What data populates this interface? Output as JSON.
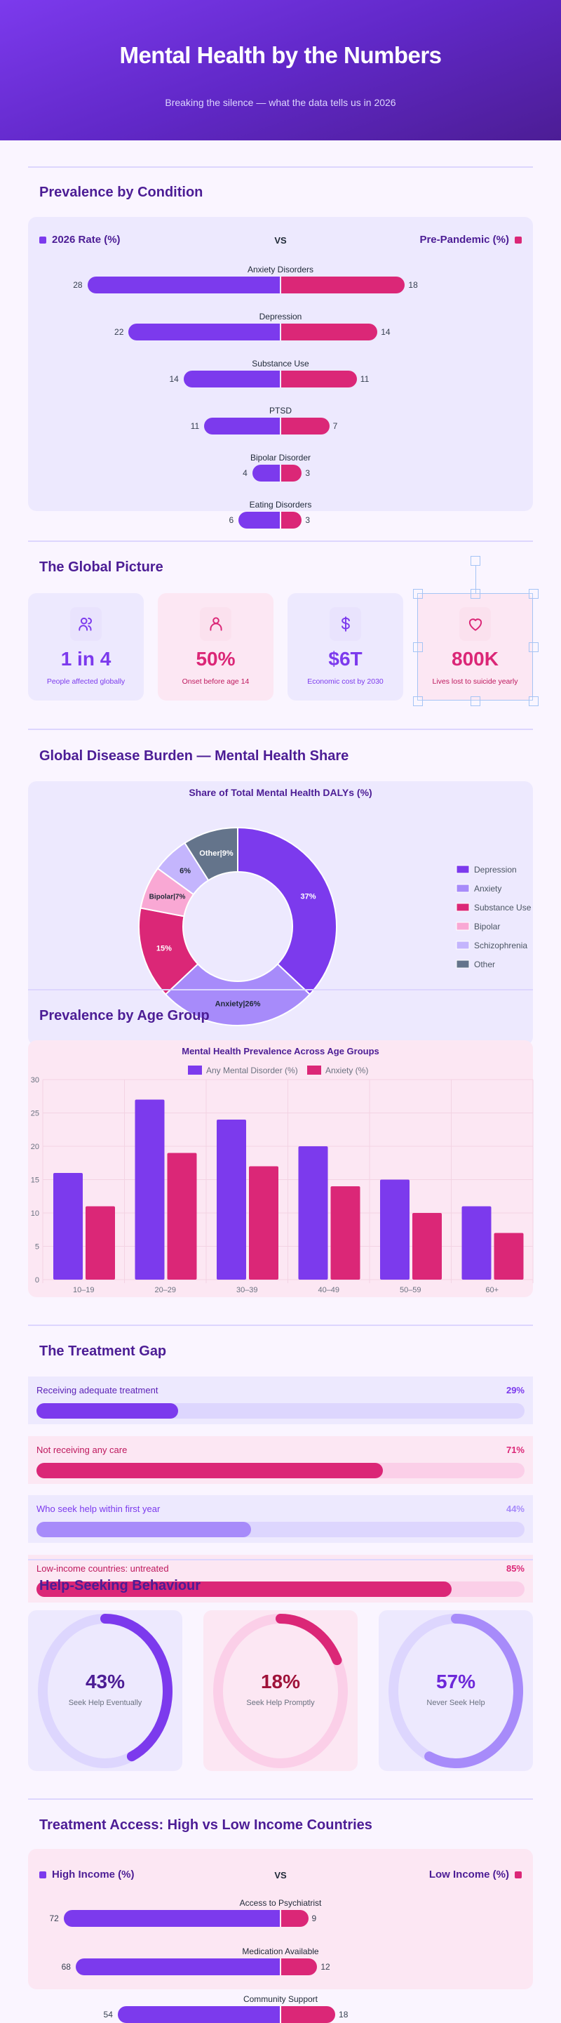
{
  "header": {
    "title": "Mental Health by the Numbers",
    "subtitle": "Breaking the silence — what the data tells us in 2026"
  },
  "colors": {
    "purple": "#7c3aed",
    "pink": "#db2777",
    "light_purple": "#a78bfa",
    "light_pink": "#f9a8d4",
    "lavender": "#c4b5fd",
    "slate": "#64748b",
    "title": "#4c1d95"
  },
  "prevalence": {
    "title": "Prevalence by Condition",
    "legend_left": "2026 Rate (%)",
    "vs": "VS",
    "legend_right": "Pre-Pandemic (%)",
    "rows": [
      {
        "label": "Anxiety Disorders",
        "left": 28,
        "right": 18
      },
      {
        "label": "Depression",
        "left": 22,
        "right": 14
      },
      {
        "label": "Substance Use",
        "left": 14,
        "right": 11
      },
      {
        "label": "PTSD",
        "left": 11,
        "right": 7
      },
      {
        "label": "Bipolar Disorder",
        "left": 4,
        "right": 3
      },
      {
        "label": "Eating Disorders",
        "left": 6,
        "right": 3
      }
    ]
  },
  "global": {
    "title": "The Global Picture",
    "stats": [
      {
        "icon": "users-icon",
        "value": "1 in 4",
        "label": "People affected globally"
      },
      {
        "icon": "user-icon",
        "value": "50%",
        "label": "Onset before age 14"
      },
      {
        "icon": "dollar-icon",
        "value": "$6T",
        "label": "Economic cost by 2030"
      },
      {
        "icon": "heart-icon",
        "value": "800K",
        "label": "Lives lost to suicide yearly"
      }
    ]
  },
  "burden": {
    "title": "Global Disease Burden — Mental Health Share"
  },
  "age": {
    "title": "Prevalence by Age Group"
  },
  "chart_data": [
    {
      "type": "pie",
      "title": "Share of Total Mental Health DALYs (%)",
      "donut": true,
      "legend": "right",
      "categories": [
        "Depression",
        "Anxiety",
        "Substance Use",
        "Bipolar",
        "Schizophrenia",
        "Other"
      ],
      "values": [
        37,
        26,
        15,
        7,
        6,
        9
      ],
      "colors": [
        "#7c3aed",
        "#a78bfa",
        "#db2777",
        "#f9a8d4",
        "#c4b5fd",
        "#64748b"
      ],
      "slice_labels": [
        "37%",
        "Anxiety|26%",
        "15%",
        "Bipolar|7%",
        "6%",
        "Other|9%"
      ]
    },
    {
      "type": "bar",
      "title": "Mental Health Prevalence Across Age Groups",
      "categories": [
        "10–19",
        "20–29",
        "30–39",
        "40–49",
        "50–59",
        "60+"
      ],
      "series": [
        {
          "name": "Any Mental Disorder (%)",
          "values": [
            16,
            27,
            24,
            20,
            15,
            11
          ],
          "color": "#7c3aed"
        },
        {
          "name": "Anxiety (%)",
          "values": [
            11,
            19,
            17,
            14,
            10,
            7
          ],
          "color": "#db2777"
        }
      ],
      "ylim": [
        0,
        30
      ],
      "yticks": [
        "0",
        "5",
        "10",
        "15",
        "20",
        "25",
        "30"
      ],
      "grid": true,
      "legend": "top"
    }
  ],
  "treatment_gap": {
    "title": "The Treatment Gap",
    "items": [
      {
        "label": "Receiving adequate treatment",
        "pct_text": "29%",
        "pct": 29
      },
      {
        "label": "Not receiving any care",
        "pct_text": "71%",
        "pct": 71
      },
      {
        "label": "Who seek help within first year",
        "pct_text": "44%",
        "pct": 44
      },
      {
        "label": "Low-income countries: untreated",
        "pct_text": "85%",
        "pct": 85
      }
    ]
  },
  "help": {
    "title": "Help-Seeking Behaviour",
    "rings": [
      {
        "value_text": "43%",
        "value": 43,
        "label": "Seek Help Eventually"
      },
      {
        "value_text": "18%",
        "value": 18,
        "label": "Seek Help Promptly"
      },
      {
        "value_text": "57%",
        "value": 57,
        "label": "Never Seek Help"
      }
    ]
  },
  "access": {
    "title": "Treatment Access: High vs Low Income Countries",
    "legend_left": "High Income (%)",
    "vs": "VS",
    "legend_right": "Low Income (%)",
    "rows": [
      {
        "label": "Access to Psychiatrist",
        "left": 72,
        "right": 9
      },
      {
        "label": "Medication Available",
        "left": 68,
        "right": 12
      },
      {
        "label": "Community Support",
        "left": 54,
        "right": 18
      }
    ]
  }
}
